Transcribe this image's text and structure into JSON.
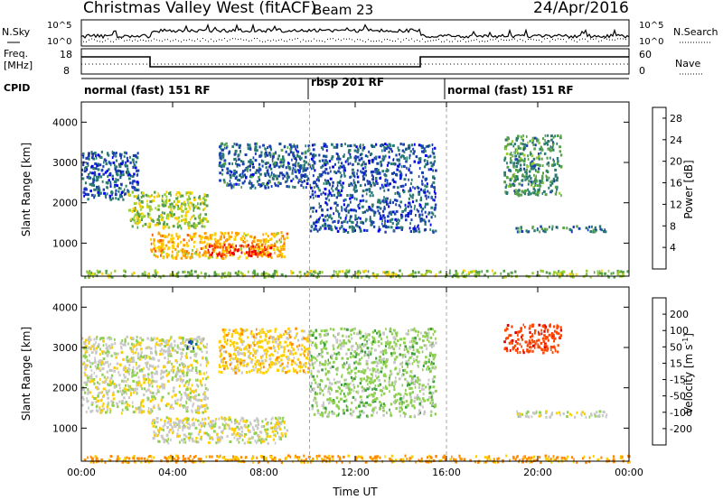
{
  "header": {
    "radar": "Christmas Valley West (fitACF)",
    "beam": "Beam 23",
    "date": "24/Apr/2016"
  },
  "noise_panel": {
    "left_label": "N.Sky",
    "left_ticks": [
      "10^5",
      "10^0"
    ],
    "right_label": "N.Search",
    "right_ticks": [
      "10^5",
      "10^0"
    ]
  },
  "freq_panel": {
    "left_label_line1": "Freq.",
    "left_label_line2": "[MHz]",
    "left_ticks": [
      "18",
      "8"
    ],
    "right_label": "Nave",
    "right_ticks": [
      "60",
      "0"
    ]
  },
  "cpid": {
    "label": "CPID",
    "segments": [
      "normal (fast) 151 RF",
      "rbsp 201 RF",
      "normal (fast) 151 RF"
    ]
  },
  "chart_data": [
    {
      "type": "heatmap",
      "title": "Power",
      "ylabel": "Slant Range [km]",
      "xlabel": "Time UT",
      "x_ticks": [
        "00:00",
        "04:00",
        "08:00",
        "12:00",
        "16:00",
        "20:00",
        "00:00"
      ],
      "y_ticks": [
        1000,
        2000,
        3000,
        4000
      ],
      "ylim": [
        180,
        4500
      ],
      "xlim_hours": [
        0,
        24
      ],
      "colorbar": {
        "label": "Power [dB]",
        "ticks": [
          4,
          8,
          12,
          16,
          20,
          24,
          28
        ],
        "range": [
          0,
          30
        ]
      },
      "mode_boundaries_hours": [
        10,
        16
      ],
      "regions": [
        {
          "t0": 0.0,
          "t1": 2.5,
          "r0": 2100,
          "r1": 3300,
          "level": 6
        },
        {
          "t0": 2.0,
          "t1": 5.5,
          "r0": 1400,
          "r1": 2300,
          "level": 15
        },
        {
          "t0": 3.0,
          "t1": 9.0,
          "r0": 650,
          "r1": 1300,
          "level": 20
        },
        {
          "t0": 5.5,
          "t1": 8.5,
          "r0": 700,
          "r1": 1000,
          "level": 27
        },
        {
          "t0": 6.0,
          "t1": 10.0,
          "r0": 2400,
          "r1": 3500,
          "level": 7
        },
        {
          "t0": 10.0,
          "t1": 15.5,
          "r0": 1300,
          "r1": 3500,
          "level": 6
        },
        {
          "t0": 19.0,
          "t1": 23.0,
          "r0": 1300,
          "r1": 1450,
          "level": 8
        },
        {
          "t0": 18.5,
          "t1": 21.0,
          "r0": 2200,
          "r1": 3700,
          "level": 10
        },
        {
          "t0": 0.0,
          "t1": 24.0,
          "r0": 180,
          "r1": 350,
          "level": 14
        }
      ]
    },
    {
      "type": "heatmap",
      "title": "Velocity",
      "ylabel": "Slant Range [km]",
      "xlabel": "Time UT",
      "x_ticks": [
        "00:00",
        "04:00",
        "08:00",
        "12:00",
        "16:00",
        "20:00",
        "00:00"
      ],
      "y_ticks": [
        1000,
        2000,
        3000,
        4000
      ],
      "ylim": [
        180,
        4500
      ],
      "xlim_hours": [
        0,
        24
      ],
      "colorbar": {
        "label": "Velocity [m s^-1]",
        "ticks": [
          200,
          100,
          50,
          15,
          -15,
          -50,
          -100,
          -200
        ],
        "range": [
          -250,
          250
        ]
      },
      "mode_boundaries_hours": [
        10,
        16
      ],
      "regions": [
        {
          "t0": 0.0,
          "t1": 5.5,
          "r0": 1400,
          "r1": 3300,
          "value": 0
        },
        {
          "t0": 3.0,
          "t1": 9.0,
          "r0": 650,
          "r1": 1300,
          "value": 0
        },
        {
          "t0": 4.5,
          "t1": 5.0,
          "r0": 3000,
          "r1": 3200,
          "value": 200
        },
        {
          "t0": 6.0,
          "t1": 10.0,
          "r0": 2400,
          "r1": 3500,
          "value": -30
        },
        {
          "t0": 10.0,
          "t1": 15.5,
          "r0": 1300,
          "r1": 3500,
          "value": 30
        },
        {
          "t0": 19.0,
          "t1": 23.0,
          "r0": 1300,
          "r1": 1450,
          "value": 0
        },
        {
          "t0": 18.5,
          "t1": 21.0,
          "r0": 2900,
          "r1": 3600,
          "value": -180
        },
        {
          "t0": 0.0,
          "t1": 24.0,
          "r0": 180,
          "r1": 350,
          "value": -60
        }
      ]
    }
  ]
}
